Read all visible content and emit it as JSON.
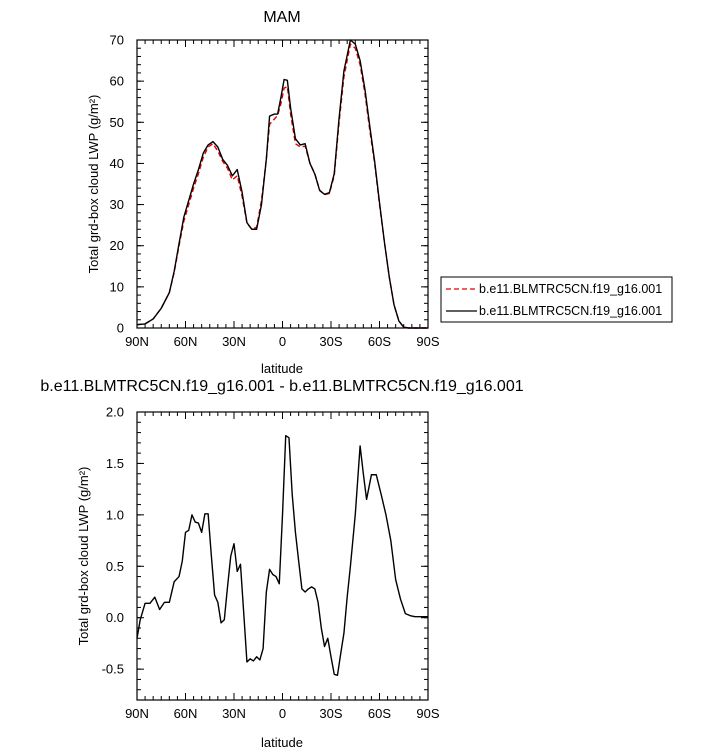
{
  "chart_data": [
    {
      "type": "line",
      "title": "MAM",
      "xlabel": "latitude",
      "ylabel": "Total grd-box cloud LWP (g/m²)",
      "x_tick_labels": [
        "90N",
        "60N",
        "30N",
        "0",
        "30S",
        "60S",
        "90S"
      ],
      "x_tick_values": [
        90,
        60,
        30,
        0,
        -30,
        -60,
        -90
      ],
      "xlim": [
        90,
        -90
      ],
      "ylim": [
        0,
        70
      ],
      "y_tick_values": [
        0,
        10,
        20,
        30,
        40,
        50,
        60,
        70
      ],
      "grid": false,
      "legend_position": "right",
      "x": [
        90,
        85,
        80,
        75,
        70,
        67,
        64,
        61,
        58,
        55,
        52,
        49,
        46,
        43,
        40,
        37,
        34,
        31,
        28,
        25,
        22,
        19,
        16,
        13,
        10,
        8,
        5,
        3,
        1,
        -1,
        -3,
        -5,
        -8,
        -11,
        -14,
        -17,
        -20,
        -23,
        -26,
        -29,
        -32,
        -35,
        -38,
        -42,
        -45,
        -48,
        -51,
        -54,
        -57,
        -60,
        -63,
        -66,
        -69,
        -72,
        -75,
        -78,
        -81,
        -84,
        -87,
        -90
      ],
      "series": [
        {
          "name": "b.e11.BLMTRC5CN.f19_g16.001",
          "color": "#e00000",
          "dash": "dashed",
          "values": [
            0.8,
            1.0,
            2.2,
            4.8,
            8.6,
            13.5,
            20,
            26,
            30,
            34,
            37.5,
            41.5,
            44,
            44.8,
            43,
            40.5,
            38.8,
            36,
            37,
            32,
            25.5,
            24,
            24.5,
            31,
            41,
            49.5,
            50.8,
            51.7,
            54.5,
            58.3,
            58.7,
            52,
            44.8,
            44,
            44.2,
            40,
            37.5,
            33.5,
            32.4,
            32.7,
            37,
            50,
            61,
            69,
            68,
            64,
            57,
            48,
            40,
            30,
            21,
            12.5,
            5.6,
            1.7,
            0.2,
            0,
            0,
            0,
            0,
            0
          ]
        },
        {
          "name": "b.e11.BLMTRC5CN.f19_g16.001",
          "color": "#000000",
          "dash": "solid",
          "values": [
            0.8,
            1.0,
            2.2,
            4.8,
            8.6,
            13.8,
            20.5,
            27,
            31,
            35,
            38.5,
            42.5,
            44.5,
            45.3,
            44,
            41,
            39.5,
            37,
            38.5,
            33,
            25.6,
            24,
            24,
            30,
            41,
            51.5,
            52,
            52,
            56,
            60.4,
            60.2,
            53.5,
            46,
            44.5,
            44.8,
            40,
            37.4,
            33.4,
            32.5,
            32.9,
            37.5,
            51,
            62.5,
            70,
            69,
            65,
            58,
            49,
            40.5,
            30.5,
            21,
            12.5,
            5.6,
            1.7,
            0.2,
            0,
            0,
            0,
            0,
            0
          ]
        }
      ]
    },
    {
      "type": "line",
      "title": "b.e11.BLMTRC5CN.f19_g16.001 - b.e11.BLMTRC5CN.f19_g16.001",
      "xlabel": "latitude",
      "ylabel": "Total grd-box cloud LWP (g/m²)",
      "x_tick_labels": [
        "90N",
        "60N",
        "30N",
        "0",
        "30S",
        "60S",
        "90S"
      ],
      "x_tick_values": [
        90,
        60,
        30,
        0,
        -30,
        -60,
        -90
      ],
      "xlim": [
        90,
        -90
      ],
      "ylim": [
        -0.8,
        2.0
      ],
      "y_tick_values": [
        -0.5,
        0.0,
        0.5,
        1.0,
        1.5,
        2.0
      ],
      "y_tick_labels": [
        "-0.5",
        "0.0",
        "0.5",
        "1.0",
        "1.5",
        "2.0"
      ],
      "grid": false,
      "series": [
        {
          "color": "#000000",
          "dash": "solid",
          "x": [
            90,
            88,
            85,
            82,
            79,
            76,
            73,
            70,
            67,
            64,
            62,
            60,
            58,
            56,
            54,
            52,
            50,
            48,
            46,
            44,
            42,
            40,
            38,
            36,
            34,
            32,
            30,
            28,
            26,
            24,
            22,
            20,
            18,
            16,
            14,
            12,
            10,
            8,
            6,
            4,
            2,
            0,
            -2,
            -4,
            -6,
            -8,
            -10,
            -12,
            -14,
            -16,
            -18,
            -20,
            -22,
            -24,
            -26,
            -28,
            -30,
            -32,
            -34,
            -36,
            -38,
            -40,
            -42,
            -45,
            -48,
            -50,
            -52,
            -55,
            -58,
            -61,
            -64,
            -67,
            -70,
            -73,
            -76,
            -79,
            -82,
            -85,
            -88,
            -90
          ],
          "values": [
            -0.2,
            -0.02,
            0.14,
            0.14,
            0.2,
            0.08,
            0.15,
            0.15,
            0.35,
            0.4,
            0.55,
            0.83,
            0.85,
            1.0,
            0.93,
            0.92,
            0.83,
            1.01,
            1.01,
            0.6,
            0.22,
            0.15,
            -0.05,
            -0.02,
            0.3,
            0.6,
            0.72,
            0.45,
            0.52,
            0.05,
            -0.43,
            -0.4,
            -0.42,
            -0.38,
            -0.41,
            -0.3,
            0.25,
            0.47,
            0.42,
            0.4,
            0.33,
            1.0,
            1.77,
            1.75,
            1.2,
            0.83,
            0.55,
            0.28,
            0.25,
            0.28,
            0.3,
            0.28,
            0.15,
            -0.1,
            -0.28,
            -0.2,
            -0.38,
            -0.55,
            -0.56,
            -0.35,
            -0.15,
            0.2,
            0.5,
            1.0,
            1.67,
            1.4,
            1.15,
            1.39,
            1.39,
            1.2,
            1.0,
            0.75,
            0.37,
            0.18,
            0.04,
            0.02,
            0.01,
            0.01,
            0.01,
            0.01
          ]
        }
      ]
    }
  ]
}
